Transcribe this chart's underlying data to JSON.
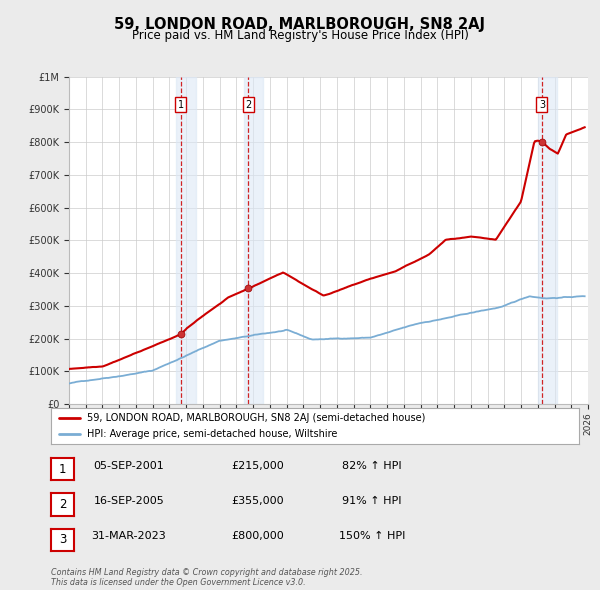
{
  "title": "59, LONDON ROAD, MARLBOROUGH, SN8 2AJ",
  "subtitle": "Price paid vs. HM Land Registry's House Price Index (HPI)",
  "title_fontsize": 10.5,
  "subtitle_fontsize": 8.5,
  "bg_color": "#ebebeb",
  "plot_bg_color": "#ffffff",
  "grid_color": "#cccccc",
  "legend_line1": "59, LONDON ROAD, MARLBOROUGH, SN8 2AJ (semi-detached house)",
  "legend_line2": "HPI: Average price, semi-detached house, Wiltshire",
  "red_color": "#cc0000",
  "blue_color": "#7aadd4",
  "transactions": [
    {
      "num": 1,
      "date": 2001.67,
      "price": 215000,
      "label": "1",
      "pct": "82%",
      "date_str": "05-SEP-2001",
      "price_str": "£215,000"
    },
    {
      "num": 2,
      "date": 2005.7,
      "price": 355000,
      "label": "2",
      "pct": "91%",
      "date_str": "16-SEP-2005",
      "price_str": "£355,000"
    },
    {
      "num": 3,
      "date": 2023.25,
      "price": 800000,
      "label": "3",
      "pct": "150%",
      "date_str": "31-MAR-2023",
      "price_str": "£800,000"
    }
  ],
  "xmin": 1995,
  "xmax": 2026,
  "ymin": 0,
  "ymax": 1000000,
  "yticks": [
    0,
    100000,
    200000,
    300000,
    400000,
    500000,
    600000,
    700000,
    800000,
    900000,
    1000000
  ],
  "ytick_labels": [
    "£0",
    "£100K",
    "£200K",
    "£300K",
    "£400K",
    "£500K",
    "£600K",
    "£700K",
    "£800K",
    "£900K",
    "£1M"
  ],
  "footer": "Contains HM Land Registry data © Crown copyright and database right 2025.\nThis data is licensed under the Open Government Licence v3.0."
}
